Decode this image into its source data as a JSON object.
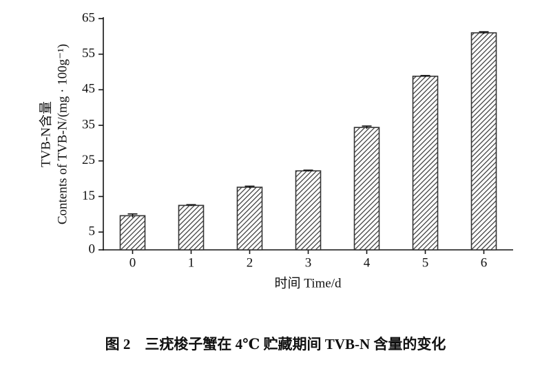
{
  "chart_data": {
    "type": "bar",
    "caption": "图 2　三疣梭子蟹在 4℃ 贮藏期间 TVB-N 含量的变化",
    "y_label": [
      "TVB-N含量",
      "Contents of TVB-N/(mg · 100g⁻¹)"
    ],
    "x_label": "时间 Time/d",
    "categories": [
      "0",
      "1",
      "2",
      "3",
      "4",
      "5",
      "6"
    ],
    "values": [
      9.6,
      12.5,
      17.6,
      22.2,
      34.4,
      48.8,
      61.0
    ],
    "errors": [
      0.5,
      0.2,
      0.3,
      0.2,
      0.4,
      0.2,
      0.3
    ],
    "color": "#333333",
    "ylim": [
      0,
      65
    ],
    "yticks": [
      0,
      5,
      15,
      25,
      35,
      45,
      55,
      65
    ],
    "grid": false
  }
}
